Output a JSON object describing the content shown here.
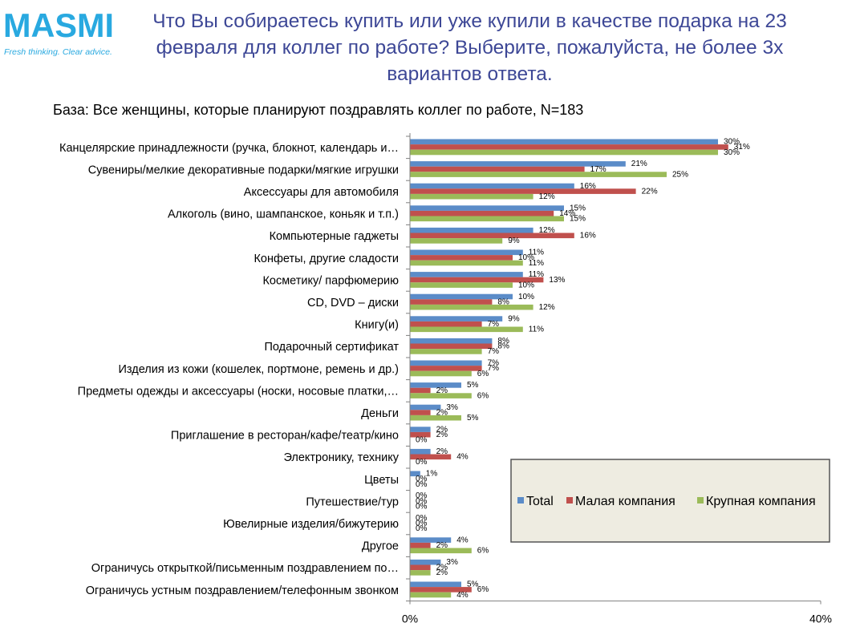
{
  "logo": {
    "name": "MASMI",
    "tagline": "Fresh thinking. Clear advice.",
    "color": "#29a9e0"
  },
  "title": "Что Вы собираетесь купить или уже купили в качестве подарка на 23 февраля для коллег по работе? Выберите, пожалуйста, не более 3х вариантов ответа.",
  "chart_data": {
    "type": "bar",
    "orientation": "horizontal",
    "title": "База: Все женщины, которые планируют поздравлять коллег по работе, N=183",
    "xlim": [
      0,
      40
    ],
    "tick_labels": [
      "0%",
      "40%"
    ],
    "legend_position": "right",
    "categories": [
      "Канцелярские принадлежности (ручка, блокнот, календарь и…",
      "Сувениры/мелкие декоративные подарки/мягкие игрушки",
      "Аксессуары для автомобиля",
      "Алкоголь (вино, шампанское, коньяк и т.п.)",
      "Компьютерные  гаджеты",
      "Конфеты, другие сладости",
      "Косметику/  парфюмерию",
      "CD, DVD – диски",
      "Книгу(и)",
      "Подарочный  сертификат",
      "Изделия из кожи (кошелек, портмоне, ремень и др.)",
      "Предметы одежды и аксессуары (носки, носовые платки,…",
      "Деньги",
      "Приглашение  в  ресторан/кафе/театр/кино",
      "Электронику,  технику",
      "Цветы",
      "Путешествие/тур",
      "Ювелирные  изделия/бижутерию",
      "Другое",
      "Ограничусь открыткой/письменным поздравлением по…",
      "Ограничусь устным поздравлением/телефонным звонком"
    ],
    "series": [
      {
        "name": "Total",
        "color": "#5b8cc8",
        "values": [
          30,
          21,
          16,
          15,
          12,
          11,
          11,
          10,
          9,
          8,
          7,
          5,
          3,
          2,
          2,
          1,
          0,
          0,
          4,
          3,
          5
        ]
      },
      {
        "name": "Малая компания",
        "color": "#c0504d",
        "values": [
          31,
          17,
          22,
          14,
          16,
          10,
          13,
          8,
          7,
          8,
          7,
          2,
          2,
          2,
          4,
          0,
          0,
          0,
          2,
          2,
          6
        ]
      },
      {
        "name": "Крупная компания",
        "color": "#9bbb59",
        "values": [
          30,
          25,
          12,
          15,
          9,
          11,
          10,
          12,
          11,
          7,
          6,
          6,
          5,
          0,
          0,
          0,
          0,
          0,
          6,
          2,
          4
        ]
      }
    ]
  }
}
